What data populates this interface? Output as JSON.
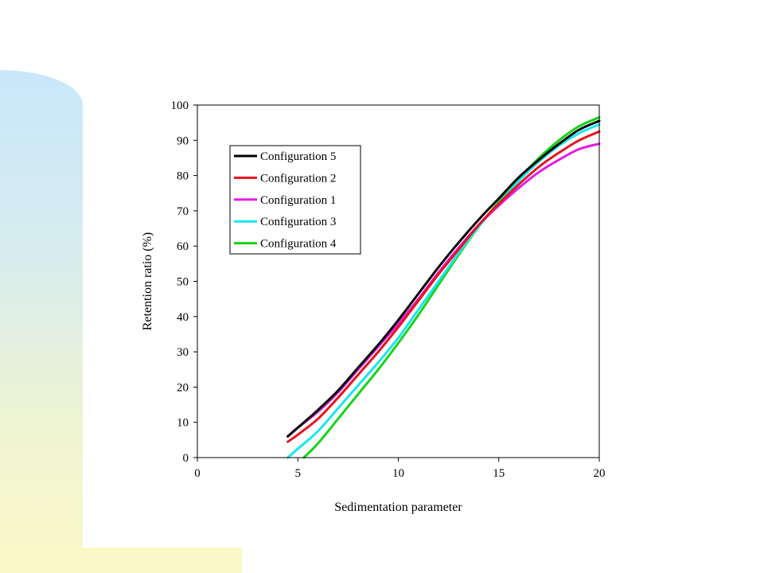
{
  "chart_data": {
    "type": "line",
    "title": "",
    "xlabel": "Sedimentation parameter",
    "ylabel": "Retention ratio (%)",
    "xlim": [
      0,
      20
    ],
    "ylim": [
      0,
      100
    ],
    "xticks": [
      0,
      5,
      10,
      15,
      20
    ],
    "yticks": [
      0,
      10,
      20,
      30,
      40,
      50,
      60,
      70,
      80,
      90,
      100
    ],
    "grid": false,
    "legend_position": "upper-left",
    "series": [
      {
        "name": "Configuration 5",
        "color": "#000000",
        "x": [
          4.5,
          5,
          6,
          7,
          8,
          9,
          10,
          11,
          12,
          13,
          14,
          15,
          16,
          17,
          18,
          19,
          20
        ],
        "y": [
          6,
          8.5,
          13.5,
          19,
          25.5,
          32,
          39,
          46.5,
          54,
          61,
          67.5,
          73.5,
          79.5,
          84.5,
          89,
          93,
          95.5
        ]
      },
      {
        "name": "Configuration 2",
        "color": "#e8121e",
        "x": [
          4.5,
          5,
          6,
          7,
          8,
          9,
          10,
          11,
          12,
          13,
          14,
          15,
          16,
          17,
          18,
          19,
          20
        ],
        "y": [
          4.5,
          6.5,
          11,
          17,
          23.5,
          30,
          37,
          44.5,
          52,
          59,
          66,
          72,
          77.5,
          82.5,
          86.5,
          90,
          92.5
        ]
      },
      {
        "name": "Configuration 1",
        "color": "#e619e6",
        "x": [
          4.5,
          5,
          6,
          7,
          8,
          9,
          10,
          11,
          12,
          13,
          14,
          15,
          16,
          17,
          18,
          19,
          20
        ],
        "y": [
          6,
          8.5,
          13,
          18.5,
          25,
          31.5,
          38,
          45,
          52.5,
          59.5,
          66,
          71.5,
          76.5,
          81,
          84.5,
          87.5,
          89
        ]
      },
      {
        "name": "Configuration 3",
        "color": "#19e6f0",
        "x": [
          4.5,
          5,
          6,
          7,
          8,
          9,
          10,
          11,
          12,
          13,
          14,
          15,
          16,
          17,
          18,
          19,
          20
        ],
        "y": [
          0,
          2.5,
          7.5,
          14,
          20.5,
          27,
          34,
          42,
          50,
          58,
          65.5,
          72,
          78.5,
          84,
          88.5,
          92,
          94.5
        ]
      },
      {
        "name": "Configuration 4",
        "color": "#19d219",
        "x": [
          5.3,
          6,
          7,
          8,
          9,
          10,
          11,
          12,
          13,
          14,
          15,
          16,
          17,
          18,
          19,
          20
        ],
        "y": [
          0,
          4,
          11,
          18,
          25,
          32.5,
          40.5,
          49,
          57.5,
          65.5,
          72.5,
          79,
          85,
          90,
          94,
          96.5
        ]
      }
    ]
  }
}
